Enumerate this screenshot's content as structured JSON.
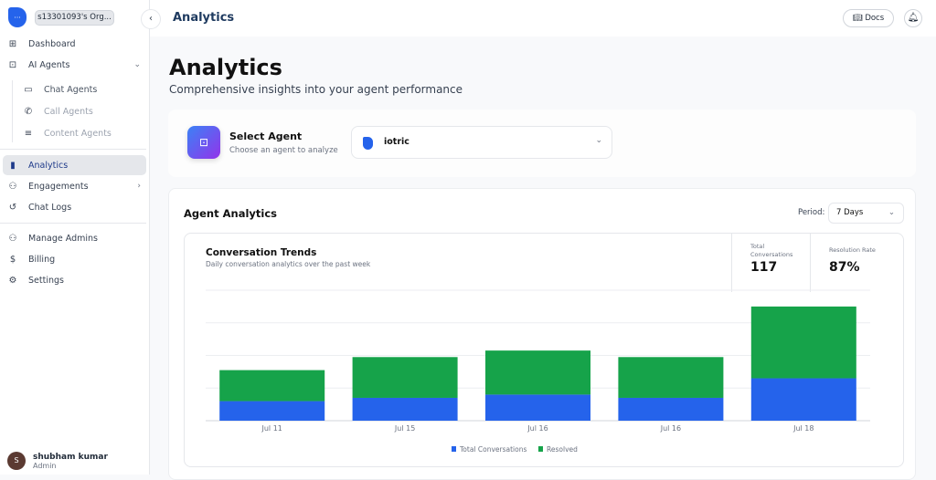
{
  "sidebar": {
    "org_name": "s13301093's Org...",
    "items": [
      {
        "label": "Dashboard",
        "icon": "grid-icon"
      },
      {
        "label": "AI Agents",
        "icon": "bot-icon"
      },
      {
        "label": "Chat Agents",
        "icon": "chat-icon"
      },
      {
        "label": "Call Agents",
        "icon": "phone-icon"
      },
      {
        "label": "Content Agents",
        "icon": "lines-icon"
      },
      {
        "label": "Analytics",
        "icon": "bar-chart-icon"
      },
      {
        "label": "Engagements",
        "icon": "users-icon"
      },
      {
        "label": "Chat Logs",
        "icon": "history-icon"
      },
      {
        "label": "Manage Admins",
        "icon": "users-icon"
      },
      {
        "label": "Billing",
        "icon": "dollar-icon"
      },
      {
        "label": "Settings",
        "icon": "gear-icon"
      }
    ],
    "user": {
      "initial": "S",
      "name": "shubham kumar",
      "role": "Admin"
    }
  },
  "header": {
    "title": "Analytics",
    "docs_label": "Docs"
  },
  "page": {
    "title": "Analytics",
    "subtitle": "Comprehensive insights into your agent performance"
  },
  "agent_select": {
    "title": "Select Agent",
    "subtitle": "Choose an agent to analyze",
    "value": "iotric"
  },
  "analytics": {
    "title": "Agent Analytics",
    "period_label": "Period:",
    "period_value": "7 Days",
    "trends_title": "Conversation Trends",
    "trends_subtitle": "Daily conversation analytics over the past week",
    "stats": [
      {
        "label": "Total Conversations",
        "value": "117"
      },
      {
        "label": "Resolution Rate",
        "value": "87%"
      }
    ]
  },
  "colors": {
    "total": "#2563eb",
    "resolved": "#16a34a",
    "accent": "#1e3a8a"
  },
  "chart_data": {
    "type": "bar",
    "stacked": true,
    "categories": [
      "Jul 11",
      "Jul 15",
      "Jul 16",
      "Jul 16",
      "Jul 18"
    ],
    "series": [
      {
        "name": "Total Conversations",
        "values": [
          6,
          7,
          8,
          7,
          13
        ]
      },
      {
        "name": "Resolved",
        "values": [
          9.5,
          12.5,
          13.5,
          12.5,
          22
        ]
      }
    ],
    "ylim": [
      0,
      40
    ],
    "grid": true,
    "legend": "bottom"
  }
}
